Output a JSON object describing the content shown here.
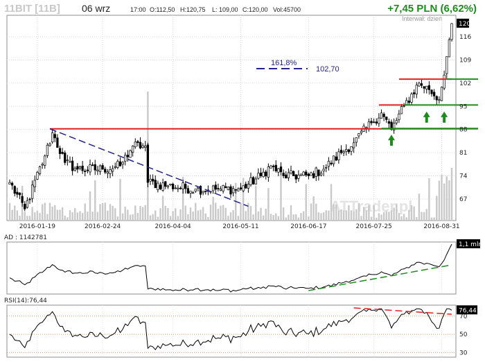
{
  "header": {
    "ticker": "11BIT [11B]",
    "date": "06 wrz",
    "time": "17:00",
    "open": "O:112,50",
    "high": "H:120,75",
    "low": "L: 109,00",
    "close": "C:120,00",
    "volume": "Vol:45700",
    "change": "+7,45 PLN (6,62%)",
    "interval": "Interwał: dzień"
  },
  "watermark": "ATTrader.pl",
  "chart_data": [
    {
      "type": "candlestick",
      "panel": "price",
      "y_ticks": [
        "67",
        "74",
        "81",
        "88",
        "95",
        "102",
        "109",
        "116"
      ],
      "ylim": [
        60.5,
        122.5
      ],
      "x_ticks": [
        "2016-01-19",
        "2016-02-24",
        "2016-04-04",
        "2016-05-11",
        "2016-06-17",
        "2016-07-25",
        "2016-08-31"
      ],
      "last_value": "120",
      "anchors": [
        {
          "date": "2016-01-04",
          "close": 72
        },
        {
          "date": "2016-01-12",
          "close": 64
        },
        {
          "date": "2016-01-22",
          "close": 80
        },
        {
          "date": "2016-01-27",
          "close": 87
        },
        {
          "date": "2016-02-03",
          "close": 78
        },
        {
          "date": "2016-02-10",
          "close": 76
        },
        {
          "date": "2016-02-24",
          "close": 76
        },
        {
          "date": "2016-03-04",
          "close": 77
        },
        {
          "date": "2016-03-11",
          "close": 83
        },
        {
          "date": "2016-03-18",
          "close": 83
        },
        {
          "date": "2016-03-21",
          "close": 72
        },
        {
          "date": "2016-03-31",
          "close": 71
        },
        {
          "date": "2016-04-15",
          "close": 70
        },
        {
          "date": "2016-04-29",
          "close": 70
        },
        {
          "date": "2016-05-11",
          "close": 70
        },
        {
          "date": "2016-05-23",
          "close": 74
        },
        {
          "date": "2016-05-27",
          "close": 77
        },
        {
          "date": "2016-06-03",
          "close": 74
        },
        {
          "date": "2016-06-17",
          "close": 74
        },
        {
          "date": "2016-06-27",
          "close": 76
        },
        {
          "date": "2016-07-06",
          "close": 81
        },
        {
          "date": "2016-07-13",
          "close": 84
        },
        {
          "date": "2016-07-22",
          "close": 90
        },
        {
          "date": "2016-07-28",
          "close": 93
        },
        {
          "date": "2016-08-03",
          "close": 88
        },
        {
          "date": "2016-08-10",
          "close": 95
        },
        {
          "date": "2016-08-18",
          "close": 102
        },
        {
          "date": "2016-08-24",
          "close": 100
        },
        {
          "date": "2016-08-30",
          "close": 97
        },
        {
          "date": "2016-09-02",
          "close": 110
        },
        {
          "date": "2016-09-06",
          "close": 120
        }
      ],
      "horizontal_lines": [
        {
          "value": 88.2,
          "from": "2016-01-26",
          "color": "#e02020"
        },
        {
          "value": 95.4,
          "from": "2016-07-27",
          "to": "2016-08-10",
          "color": "#e02020"
        },
        {
          "value": 103.2,
          "from": "2016-08-08",
          "to": "2016-09-06",
          "color": "#e02020"
        },
        {
          "value": 88.3,
          "from": "2016-07-28",
          "color": "#1c8c1c"
        },
        {
          "value": 95.4,
          "from": "2016-08-10",
          "color": "#1c8c1c"
        },
        {
          "value": 103.2,
          "from": "2016-09-02",
          "color": "#1c8c1c"
        }
      ],
      "trend_line": {
        "from": {
          "date": "2016-01-26",
          "value": 88.2
        },
        "to": {
          "date": "2016-05-16",
          "value": 64.8
        },
        "color": "#22228a"
      },
      "fib_annotation": {
        "percent": "161,8%",
        "value": "102,70",
        "color": "#22228a"
      },
      "up_arrows": [
        {
          "date": "2016-08-03",
          "value": 86
        },
        {
          "date": "2016-08-23",
          "value": 93
        },
        {
          "date": "2016-09-01",
          "value": 93
        }
      ]
    },
    {
      "type": "line",
      "panel": "AD",
      "label": "AD : 1142781",
      "last_value": "1,1 mln",
      "trend_line": {
        "from": "2016-06-17",
        "to": "2016-09-06",
        "color": "#1c8c1c"
      }
    },
    {
      "type": "line",
      "panel": "RSI",
      "label": "RSI(14):76,44",
      "y_ticks": [
        "30",
        "50",
        "70"
      ],
      "ylim": [
        25,
        82
      ],
      "last_value": "76,44",
      "trend_line": {
        "from": "2016-07-13",
        "to": "2016-09-06",
        "color": "#e02020"
      }
    }
  ]
}
